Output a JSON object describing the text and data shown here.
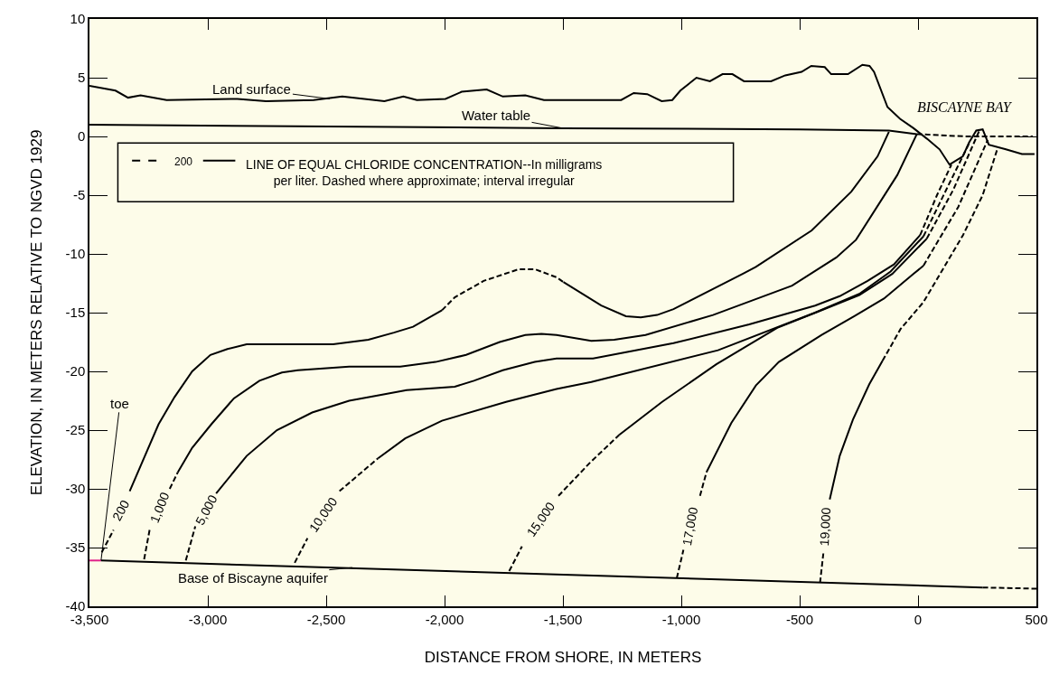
{
  "chart_data": {
    "type": "line",
    "xlabel": "DISTANCE FROM SHORE, IN METERS",
    "ylabel": "ELEVATION, IN METERS RELATIVE TO NGVD 1929",
    "xlim": [
      -3500,
      500
    ],
    "ylim": [
      -40,
      10
    ],
    "xticks": [
      {
        "value": -3500,
        "label": "-3,500"
      },
      {
        "value": -3000,
        "label": "-3,000"
      },
      {
        "value": -2500,
        "label": "-2,500"
      },
      {
        "value": -2000,
        "label": "-2,000"
      },
      {
        "value": -1500,
        "label": "-1,500"
      },
      {
        "value": -1000,
        "label": "-1,000"
      },
      {
        "value": -500,
        "label": "-500"
      },
      0,
      500
    ],
    "yticks": [
      -40,
      -35,
      -30,
      -25,
      -20,
      -15,
      -10,
      -5,
      0,
      5,
      10
    ],
    "series": [
      {
        "color": "#000000",
        "line_style": "solid",
        "x": [
          -3500,
          -3390,
          -3337,
          -3284,
          -3174,
          -2875,
          -2754,
          -2553,
          -2432,
          -2254,
          -2174,
          -2117,
          -1996,
          -1928,
          -1822,
          -1754,
          -1659,
          -1580,
          -1492,
          -1254,
          -1201,
          -1144,
          -1083,
          -1038,
          -1004,
          -936,
          -879,
          -826,
          -784,
          -735,
          -621,
          -561,
          -492,
          -451,
          -394,
          -367,
          -296,
          -235,
          -205,
          -186,
          -129,
          -76,
          -19,
          38,
          91,
          133,
          189,
          216,
          246,
          273,
          299,
          371,
          439,
          492
        ],
        "values": [
          4.3,
          3.9,
          3.3,
          3.5,
          3.1,
          3.2,
          3.0,
          3.1,
          3.4,
          3.0,
          3.4,
          3.1,
          3.2,
          3.8,
          4.0,
          3.4,
          3.5,
          3.1,
          3.1,
          3.1,
          3.7,
          3.6,
          3.0,
          3.1,
          3.9,
          5.0,
          4.7,
          5.3,
          5.3,
          4.7,
          4.7,
          5.2,
          5.5,
          6.0,
          5.9,
          5.3,
          5.3,
          6.1,
          6.0,
          5.5,
          2.5,
          1.5,
          0.7,
          -0.2,
          -1.1,
          -2.4,
          -1.7,
          -0.5,
          0.5,
          0.6,
          -0.7,
          -1.1,
          -1.5,
          -1.5
        ]
      },
      {
        "color": "#000000",
        "line_style": "solid",
        "x": [
          -3500,
          -1500,
          -500,
          -123,
          -5
        ],
        "values": [
          1.0,
          0.7,
          0.6,
          0.5,
          0.2
        ]
      },
      {
        "color": "#000000",
        "line_style": "dashed",
        "x": [
          -5,
          200,
          485
        ],
        "values": [
          0.2,
          0.0,
          0.0
        ]
      },
      {
        "color": "#000000",
        "line_style": "solid",
        "x": [
          -3451,
          273
        ],
        "values": [
          -36.1,
          -38.4
        ]
      },
      {
        "color": "#000000",
        "line_style": "dashed",
        "x": [
          273,
          500
        ],
        "values": [
          -38.4,
          -38.5
        ]
      },
      {
        "color": "#e0218a",
        "line_style": "solid",
        "x": [
          -3500,
          -3451
        ],
        "values": [
          -36.1,
          -36.1
        ]
      },
      {
        "color": "#000000",
        "line_style": "dashed",
        "x": [
          -3448,
          -3398
        ],
        "values": [
          -35.4,
          -33.5
        ]
      },
      {
        "color": "#000000",
        "line_style": "solid",
        "x": [
          -3330,
          -3208,
          -3141,
          -3066,
          -2989,
          -2917,
          -2836,
          -2471,
          -2322,
          -2214,
          -2133,
          -2011
        ],
        "values": [
          -30.2,
          -24.5,
          -22.2,
          -20.0,
          -18.6,
          -18.1,
          -17.7,
          -17.7,
          -17.3,
          -16.7,
          -16.2,
          -14.8
        ]
      },
      {
        "color": "#000000",
        "line_style": "dashed",
        "x": [
          -2011,
          -1957,
          -1835,
          -1686,
          -1619,
          -1526,
          -1498
        ],
        "values": [
          -14.8,
          -13.7,
          -12.3,
          -11.3,
          -11.3,
          -12.0,
          -12.4
        ]
      },
      {
        "color": "#000000",
        "line_style": "solid",
        "x": [
          -1498,
          -1338,
          -1234,
          -1171,
          -1102,
          -1033,
          -741,
          -685,
          -449,
          -282,
          -171,
          -123
        ],
        "values": [
          -12.4,
          -14.4,
          -15.3,
          -15.4,
          -15.2,
          -14.7,
          -11.7,
          -11.1,
          -8.0,
          -4.7,
          -1.7,
          0.4
        ]
      },
      {
        "color": "#000000",
        "line_style": "dashed",
        "x": [
          -3269,
          -3245
        ],
        "values": [
          -36.0,
          -33.4
        ]
      },
      {
        "color": "#000000",
        "line_style": "dashed",
        "x": [
          -3161,
          -3127
        ],
        "values": [
          -30.0,
          -28.6
        ]
      },
      {
        "color": "#000000",
        "line_style": "solid",
        "x": [
          -3127,
          -3066,
          -2985,
          -2890,
          -2782,
          -2687,
          -2620,
          -2403,
          -2187,
          -2038,
          -1909,
          -1767,
          -1659,
          -1591,
          -1527,
          -1380,
          -1283,
          -1151,
          -866,
          -532,
          -345,
          -262,
          -88,
          -5
        ],
        "values": [
          -28.6,
          -26.5,
          -24.5,
          -22.3,
          -20.8,
          -20.1,
          -19.9,
          -19.6,
          -19.6,
          -19.2,
          -18.6,
          -17.5,
          -16.9,
          -16.8,
          -16.9,
          -17.4,
          -17.3,
          -16.9,
          -15.2,
          -12.7,
          -10.3,
          -8.8,
          -3.3,
          0.2
        ]
      },
      {
        "color": "#000000",
        "line_style": "dashed",
        "x": [
          -3093,
          -3053
        ],
        "values": [
          -36.1,
          -33.2
        ]
      },
      {
        "color": "#000000",
        "line_style": "solid",
        "x": [
          -2965,
          -2836,
          -2708,
          -2559,
          -2403,
          -2268,
          -2160,
          -1957,
          -1876,
          -1754,
          -1619,
          -1527,
          -1373,
          -1033,
          -713,
          -435,
          -331,
          -213,
          -102,
          9
        ],
        "values": [
          -30.4,
          -27.2,
          -25.0,
          -23.5,
          -22.5,
          -22.0,
          -21.6,
          -21.3,
          -20.8,
          -19.9,
          -19.2,
          -18.9,
          -18.9,
          -17.6,
          -16.0,
          -14.4,
          -13.6,
          -12.3,
          -10.9,
          -8.4
        ]
      },
      {
        "color": "#000000",
        "line_style": "dashed",
        "x": [
          9,
          80,
          141
        ],
        "values": [
          -8.4,
          -5.0,
          -2.4
        ]
      },
      {
        "color": "#000000",
        "line_style": "dashed",
        "x": [
          -2633,
          -2579
        ],
        "values": [
          -36.3,
          -34.2
        ]
      },
      {
        "color": "#000000",
        "line_style": "dashed",
        "x": [
          -2444,
          -2281
        ],
        "values": [
          -30.2,
          -27.4
        ]
      },
      {
        "color": "#000000",
        "line_style": "solid",
        "x": [
          -2281,
          -2166,
          -2011,
          -1740,
          -1527,
          -1380,
          -845,
          -435,
          -248,
          -116,
          23
        ],
        "values": [
          -27.4,
          -25.7,
          -24.2,
          -22.6,
          -21.5,
          -20.9,
          -18.2,
          -15.0,
          -13.4,
          -11.5,
          -8.5
        ]
      },
      {
        "color": "#000000",
        "line_style": "dashed",
        "x": [
          23,
          120,
          218
        ],
        "values": [
          -8.5,
          -4.5,
          -0.5
        ]
      },
      {
        "color": "#000000",
        "line_style": "dashed",
        "x": [
          -1727,
          -1673
        ],
        "values": [
          -37.0,
          -34.9
        ]
      },
      {
        "color": "#000000",
        "line_style": "dashed",
        "x": [
          -1519,
          -1387,
          -1262
        ],
        "values": [
          -30.6,
          -27.8,
          -25.4
        ]
      },
      {
        "color": "#000000",
        "line_style": "solid",
        "x": [
          -1262,
          -1081,
          -852,
          -595,
          -421,
          -248,
          -109,
          37
        ],
        "values": [
          -25.4,
          -22.6,
          -19.4,
          -16.3,
          -14.9,
          -13.5,
          -11.7,
          -8.7
        ]
      },
      {
        "color": "#000000",
        "line_style": "dashed",
        "x": [
          37,
          150,
          259
        ],
        "values": [
          -8.7,
          -4.5,
          0.5
        ]
      },
      {
        "color": "#000000",
        "line_style": "dashed",
        "x": [
          -1019,
          -991
        ],
        "values": [
          -37.6,
          -35.2
        ]
      },
      {
        "color": "#000000",
        "line_style": "dashed",
        "x": [
          -921,
          -894
        ],
        "values": [
          -30.6,
          -28.6
        ]
      },
      {
        "color": "#000000",
        "line_style": "solid",
        "x": [
          -894,
          -789,
          -685,
          -588,
          -407,
          -269,
          -144,
          -19,
          23
        ],
        "values": [
          -28.6,
          -24.4,
          -21.2,
          -19.2,
          -16.9,
          -15.3,
          -13.8,
          -11.7,
          -11.0
        ]
      },
      {
        "color": "#000000",
        "line_style": "dashed",
        "x": [
          23,
          170,
          294
        ],
        "values": [
          -11.0,
          -6.0,
          -0.3
        ]
      },
      {
        "color": "#000000",
        "line_style": "dashed",
        "x": [
          -414,
          -400
        ],
        "values": [
          -38.0,
          -35.5
        ]
      },
      {
        "color": "#000000",
        "line_style": "solid",
        "x": [
          -373,
          -331,
          -275,
          -206,
          -150
        ],
        "values": [
          -30.9,
          -27.2,
          -24.1,
          -21.1,
          -19.1
        ]
      },
      {
        "color": "#000000",
        "line_style": "dashed",
        "x": [
          -150,
          -74,
          23,
          190,
          273,
          336
        ],
        "values": [
          -19.1,
          -16.4,
          -14.1,
          -8.4,
          -5.0,
          -1.0
        ]
      }
    ],
    "annotations": [
      "200",
      "LINE OF EQUAL CHLORIDE CONCENTRATION--In milligrams\nper liter. Dashed where approximate; interval irregular",
      "BISCAYNE BAY",
      "200",
      "1,000",
      "5,000",
      "10,000",
      "15,000",
      "17,000",
      "19,000",
      {
        "text": "Land surface",
        "x": -2485,
        "y": 3.2
      },
      {
        "text": "Water table",
        "x": -1500,
        "y": 0.7
      },
      {
        "text": "toe",
        "x": -3451,
        "y": -36.1
      },
      {
        "text": "Base of Biscayne aquifer",
        "x": -2390,
        "y": -36.7
      }
    ]
  }
}
